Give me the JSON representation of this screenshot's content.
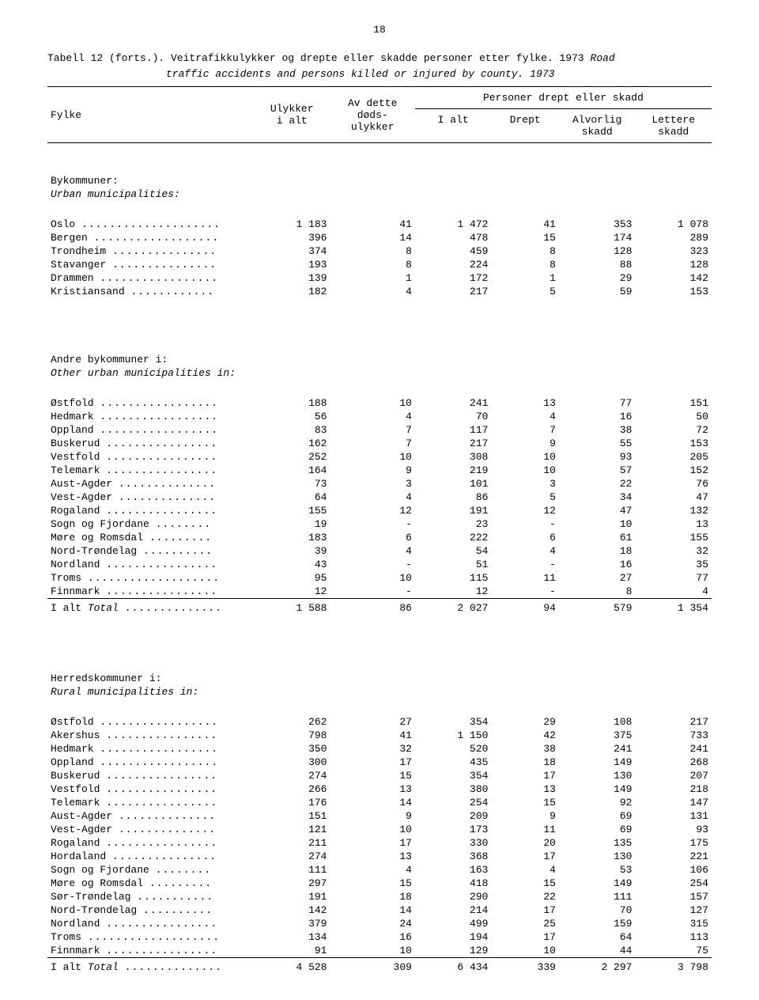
{
  "page_number": "18",
  "caption_no": "Tabell 12 (forts.).  Veitrafikkulykker og drepte eller skadde personer etter fylke.  1973",
  "caption_en_lead": "  Road",
  "caption_en": "traffic accidents and persons killed or injured by county.  1973",
  "headers": {
    "col_fylke": "Fylke",
    "col_ulykker": "Ulykker\ni alt",
    "col_dods": "Av dette\ndøds-\nulykker",
    "col_persons_group": "Personer drept eller skadd",
    "col_ialt": "I alt",
    "col_drept": "Drept",
    "col_alvorlig": "Alvorlig\nskadd",
    "col_lettere": "Lettere\nskadd"
  },
  "sections": [
    {
      "title_no": "Bykommuner:",
      "title_en": "Urban municipalities:",
      "rows": [
        {
          "label": "Oslo",
          "u": "1 183",
          "d": "41",
          "pi": "1 472",
          "dr": "41",
          "al": "353",
          "le": "1 078"
        },
        {
          "label": "Bergen",
          "u": "396",
          "d": "14",
          "pi": "478",
          "dr": "15",
          "al": "174",
          "le": "289"
        },
        {
          "label": "Trondheim",
          "u": "374",
          "d": "8",
          "pi": "459",
          "dr": "8",
          "al": "128",
          "le": "323"
        },
        {
          "label": "Stavanger",
          "u": "193",
          "d": "8",
          "pi": "224",
          "dr": "8",
          "al": "88",
          "le": "128"
        },
        {
          "label": "Drammen",
          "u": "139",
          "d": "1",
          "pi": "172",
          "dr": "1",
          "al": "29",
          "le": "142"
        },
        {
          "label": "Kristiansand",
          "u": "182",
          "d": "4",
          "pi": "217",
          "dr": "5",
          "al": "59",
          "le": "153"
        }
      ]
    },
    {
      "title_no": "Andre bykommuner i:",
      "title_en": "Other urban municipalities in:",
      "rows": [
        {
          "label": "Østfold",
          "u": "188",
          "d": "10",
          "pi": "241",
          "dr": "13",
          "al": "77",
          "le": "151"
        },
        {
          "label": "Hedmark",
          "u": "56",
          "d": "4",
          "pi": "70",
          "dr": "4",
          "al": "16",
          "le": "50"
        },
        {
          "label": "Oppland",
          "u": "83",
          "d": "7",
          "pi": "117",
          "dr": "7",
          "al": "38",
          "le": "72"
        },
        {
          "label": "Buskerud",
          "u": "162",
          "d": "7",
          "pi": "217",
          "dr": "9",
          "al": "55",
          "le": "153"
        },
        {
          "label": "Vestfold",
          "u": "252",
          "d": "10",
          "pi": "308",
          "dr": "10",
          "al": "93",
          "le": "205"
        },
        {
          "label": "Telemark",
          "u": "164",
          "d": "9",
          "pi": "219",
          "dr": "10",
          "al": "57",
          "le": "152"
        },
        {
          "label": "Aust-Agder",
          "u": "73",
          "d": "3",
          "pi": "101",
          "dr": "3",
          "al": "22",
          "le": "76"
        },
        {
          "label": "Vest-Agder",
          "u": "64",
          "d": "4",
          "pi": "86",
          "dr": "5",
          "al": "34",
          "le": "47"
        },
        {
          "label": "Rogaland",
          "u": "155",
          "d": "12",
          "pi": "191",
          "dr": "12",
          "al": "47",
          "le": "132"
        },
        {
          "label": "Sogn og Fjordane",
          "u": "19",
          "d": "-",
          "pi": "23",
          "dr": "-",
          "al": "10",
          "le": "13"
        },
        {
          "label": "Møre og Romsdal",
          "u": "183",
          "d": "6",
          "pi": "222",
          "dr": "6",
          "al": "61",
          "le": "155"
        },
        {
          "label": "Nord-Trøndelag",
          "u": "39",
          "d": "4",
          "pi": "54",
          "dr": "4",
          "al": "18",
          "le": "32"
        },
        {
          "label": "Nordland",
          "u": "43",
          "d": "-",
          "pi": "51",
          "dr": "-",
          "al": "16",
          "le": "35"
        },
        {
          "label": "Troms",
          "u": "95",
          "d": "10",
          "pi": "115",
          "dr": "11",
          "al": "27",
          "le": "77"
        },
        {
          "label": "Finnmark",
          "u": "12",
          "d": "-",
          "pi": "12",
          "dr": "-",
          "al": "8",
          "le": "4"
        }
      ],
      "total": {
        "label": "I alt",
        "label_it": "Total",
        "u": "1 588",
        "d": "86",
        "pi": "2 027",
        "dr": "94",
        "al": "579",
        "le": "1 354"
      }
    },
    {
      "title_no": "Herredskommuner i:",
      "title_en": "Rural municipalities in:",
      "rows": [
        {
          "label": "Østfold",
          "u": "262",
          "d": "27",
          "pi": "354",
          "dr": "29",
          "al": "108",
          "le": "217"
        },
        {
          "label": "Akershus",
          "u": "798",
          "d": "41",
          "pi": "1 150",
          "dr": "42",
          "al": "375",
          "le": "733"
        },
        {
          "label": "Hedmark",
          "u": "350",
          "d": "32",
          "pi": "520",
          "dr": "38",
          "al": "241",
          "le": "241"
        },
        {
          "label": "Oppland",
          "u": "300",
          "d": "17",
          "pi": "435",
          "dr": "18",
          "al": "149",
          "le": "268"
        },
        {
          "label": "Buskerud",
          "u": "274",
          "d": "15",
          "pi": "354",
          "dr": "17",
          "al": "130",
          "le": "207"
        },
        {
          "label": "Vestfold",
          "u": "266",
          "d": "13",
          "pi": "380",
          "dr": "13",
          "al": "149",
          "le": "218"
        },
        {
          "label": "Telemark",
          "u": "176",
          "d": "14",
          "pi": "254",
          "dr": "15",
          "al": "92",
          "le": "147"
        },
        {
          "label": "Aust-Agder",
          "u": "151",
          "d": "9",
          "pi": "209",
          "dr": "9",
          "al": "69",
          "le": "131"
        },
        {
          "label": "Vest-Agder",
          "u": "121",
          "d": "10",
          "pi": "173",
          "dr": "11",
          "al": "69",
          "le": "93"
        },
        {
          "label": "Rogaland",
          "u": "211",
          "d": "17",
          "pi": "330",
          "dr": "20",
          "al": "135",
          "le": "175"
        },
        {
          "label": "Hordaland",
          "u": "274",
          "d": "13",
          "pi": "368",
          "dr": "17",
          "al": "130",
          "le": "221"
        },
        {
          "label": "Sogn og Fjordane",
          "u": "111",
          "d": "4",
          "pi": "163",
          "dr": "4",
          "al": "53",
          "le": "106"
        },
        {
          "label": "Møre og Romsdal",
          "u": "297",
          "d": "15",
          "pi": "418",
          "dr": "15",
          "al": "149",
          "le": "254"
        },
        {
          "label": "Sør-Trøndelag",
          "u": "191",
          "d": "18",
          "pi": "290",
          "dr": "22",
          "al": "111",
          "le": "157"
        },
        {
          "label": "Nord-Trøndelag",
          "u": "142",
          "d": "14",
          "pi": "214",
          "dr": "17",
          "al": "70",
          "le": "127"
        },
        {
          "label": "Nordland",
          "u": "379",
          "d": "24",
          "pi": "499",
          "dr": "25",
          "al": "159",
          "le": "315"
        },
        {
          "label": "Troms",
          "u": "134",
          "d": "16",
          "pi": "194",
          "dr": "17",
          "al": "64",
          "le": "113"
        },
        {
          "label": "Finnmark",
          "u": "91",
          "d": "10",
          "pi": "129",
          "dr": "10",
          "al": "44",
          "le": "75"
        }
      ],
      "total": {
        "label": "I alt",
        "label_it": "Total",
        "u": "4 528",
        "d": "309",
        "pi": "6 434",
        "dr": "339",
        "al": "2 297",
        "le": "3 798"
      }
    }
  ],
  "style": {
    "font_family": "Courier New",
    "font_size_pt": 10,
    "bg_color": "#ffffff",
    "text_color": "#000000",
    "rule_color": "#000000"
  }
}
